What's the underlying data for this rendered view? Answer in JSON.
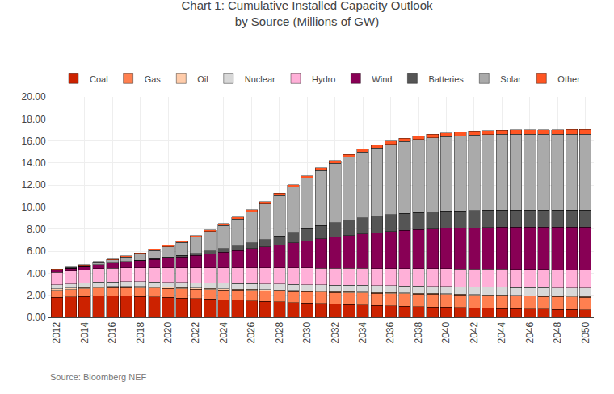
{
  "chart_data": {
    "type": "bar",
    "title": "Chart 1: Cumulative Installed Capacity Outlook\nby Source (Millions of GW)",
    "annotations": [
      "Source: Bloomberg NEF"
    ],
    "x": [
      2012,
      2013,
      2014,
      2015,
      2016,
      2017,
      2018,
      2019,
      2020,
      2021,
      2022,
      2023,
      2024,
      2025,
      2026,
      2027,
      2028,
      2029,
      2030,
      2031,
      2032,
      2033,
      2034,
      2035,
      2036,
      2037,
      2038,
      2039,
      2040,
      2041,
      2042,
      2043,
      2044,
      2045,
      2046,
      2047,
      2048,
      2049,
      2050
    ],
    "series": [
      {
        "name": "Coal",
        "color": "#CC2200",
        "values": [
          1.8,
          1.85,
          1.9,
          1.95,
          1.95,
          1.95,
          1.9,
          1.85,
          1.8,
          1.75,
          1.7,
          1.65,
          1.6,
          1.55,
          1.5,
          1.45,
          1.4,
          1.35,
          1.3,
          1.25,
          1.2,
          1.15,
          1.12,
          1.08,
          1.05,
          1.02,
          0.98,
          0.95,
          0.92,
          0.88,
          0.85,
          0.82,
          0.8,
          0.78,
          0.76,
          0.74,
          0.72,
          0.7,
          0.68
        ]
      },
      {
        "name": "Gas",
        "color": "#FF8050",
        "values": [
          0.65,
          0.67,
          0.69,
          0.71,
          0.73,
          0.75,
          0.77,
          0.79,
          0.81,
          0.83,
          0.85,
          0.87,
          0.89,
          0.91,
          0.93,
          0.95,
          0.97,
          0.99,
          1.01,
          1.03,
          1.05,
          1.07,
          1.09,
          1.1,
          1.11,
          1.12,
          1.13,
          1.14,
          1.15,
          1.15,
          1.15,
          1.15,
          1.15,
          1.15,
          1.15,
          1.15,
          1.15,
          1.15,
          1.15
        ]
      },
      {
        "name": "Oil",
        "color": "#FFCCAA",
        "values": [
          0.12,
          0.12,
          0.12,
          0.12,
          0.12,
          0.12,
          0.12,
          0.12,
          0.11,
          0.11,
          0.11,
          0.11,
          0.11,
          0.1,
          0.1,
          0.1,
          0.1,
          0.1,
          0.09,
          0.09,
          0.09,
          0.09,
          0.09,
          0.08,
          0.08,
          0.08,
          0.08,
          0.08,
          0.07,
          0.07,
          0.07,
          0.07,
          0.07,
          0.06,
          0.06,
          0.06,
          0.06,
          0.06,
          0.06
        ]
      },
      {
        "name": "Nuclear",
        "color": "#D8D8D8",
        "values": [
          0.38,
          0.39,
          0.4,
          0.41,
          0.42,
          0.43,
          0.44,
          0.45,
          0.46,
          0.47,
          0.48,
          0.49,
          0.5,
          0.51,
          0.52,
          0.53,
          0.54,
          0.55,
          0.56,
          0.57,
          0.58,
          0.59,
          0.6,
          0.61,
          0.62,
          0.63,
          0.64,
          0.65,
          0.66,
          0.67,
          0.68,
          0.69,
          0.7,
          0.71,
          0.72,
          0.73,
          0.74,
          0.75,
          0.76
        ]
      },
      {
        "name": "Hydro",
        "color": "#FFB0D8",
        "values": [
          1.15,
          1.17,
          1.19,
          1.21,
          1.23,
          1.25,
          1.27,
          1.29,
          1.31,
          1.33,
          1.35,
          1.37,
          1.39,
          1.41,
          1.43,
          1.45,
          1.47,
          1.49,
          1.51,
          1.52,
          1.53,
          1.54,
          1.55,
          1.56,
          1.57,
          1.58,
          1.59,
          1.6,
          1.61,
          1.62,
          1.63,
          1.64,
          1.65,
          1.65,
          1.65,
          1.65,
          1.65,
          1.65,
          1.65
        ]
      },
      {
        "name": "Wind",
        "color": "#880055",
        "values": [
          0.18,
          0.24,
          0.3,
          0.38,
          0.46,
          0.55,
          0.65,
          0.76,
          0.88,
          1.0,
          1.14,
          1.28,
          1.43,
          1.58,
          1.75,
          1.92,
          2.1,
          2.28,
          2.47,
          2.65,
          2.82,
          2.98,
          3.12,
          3.24,
          3.35,
          3.45,
          3.53,
          3.6,
          3.66,
          3.71,
          3.75,
          3.78,
          3.8,
          3.82,
          3.83,
          3.84,
          3.85,
          3.86,
          3.87
        ]
      },
      {
        "name": "Batteries",
        "color": "#555555",
        "values": [
          0.0,
          0.0,
          0.0,
          0.01,
          0.02,
          0.03,
          0.04,
          0.06,
          0.09,
          0.13,
          0.18,
          0.24,
          0.32,
          0.42,
          0.53,
          0.65,
          0.79,
          0.94,
          1.1,
          1.22,
          1.32,
          1.4,
          1.46,
          1.5,
          1.53,
          1.55,
          1.56,
          1.57,
          1.57,
          1.57,
          1.57,
          1.57,
          1.57,
          1.57,
          1.57,
          1.57,
          1.57,
          1.57,
          1.57
        ]
      },
      {
        "name": "Solar",
        "color": "#AAAAAA",
        "values": [
          0.04,
          0.07,
          0.12,
          0.19,
          0.29,
          0.41,
          0.56,
          0.74,
          0.95,
          1.19,
          1.46,
          1.76,
          2.09,
          2.45,
          2.83,
          3.24,
          3.67,
          4.12,
          4.58,
          5.0,
          5.38,
          5.71,
          5.98,
          6.2,
          6.38,
          6.52,
          6.63,
          6.71,
          6.77,
          6.81,
          6.84,
          6.86,
          6.87,
          6.88,
          6.88,
          6.88,
          6.88,
          6.88,
          6.88
        ]
      },
      {
        "name": "Other",
        "color": "#FF5522",
        "values": [
          0.05,
          0.06,
          0.07,
          0.08,
          0.09,
          0.1,
          0.11,
          0.12,
          0.13,
          0.14,
          0.15,
          0.16,
          0.17,
          0.18,
          0.19,
          0.2,
          0.21,
          0.22,
          0.23,
          0.24,
          0.25,
          0.26,
          0.27,
          0.28,
          0.29,
          0.3,
          0.31,
          0.32,
          0.33,
          0.34,
          0.35,
          0.36,
          0.37,
          0.38,
          0.39,
          0.4,
          0.41,
          0.42,
          0.43
        ]
      }
    ],
    "stacked": true,
    "xlim": [
      2011.4,
      2050.6
    ],
    "xticks": [
      2012,
      2014,
      2016,
      2018,
      2020,
      2022,
      2024,
      2026,
      2028,
      2030,
      2032,
      2034,
      2036,
      2038,
      2040,
      2042,
      2044,
      2046,
      2048,
      2050
    ],
    "ylim": [
      0,
      20
    ],
    "yticks": [
      {
        "value": 0,
        "label": "0.00"
      },
      {
        "value": 2,
        "label": "2.00"
      },
      {
        "value": 4,
        "label": "4.00"
      },
      {
        "value": 6,
        "label": "6.00"
      },
      {
        "value": 8,
        "label": "8.00"
      },
      {
        "value": 10,
        "label": "10.00"
      },
      {
        "value": 12,
        "label": "12.00"
      },
      {
        "value": 14,
        "label": "14.00"
      },
      {
        "value": 16,
        "label": "16.00"
      },
      {
        "value": 18,
        "label": "18.00"
      },
      {
        "value": 20,
        "label": "20.00"
      }
    ],
    "grid": true,
    "legend": "top"
  }
}
